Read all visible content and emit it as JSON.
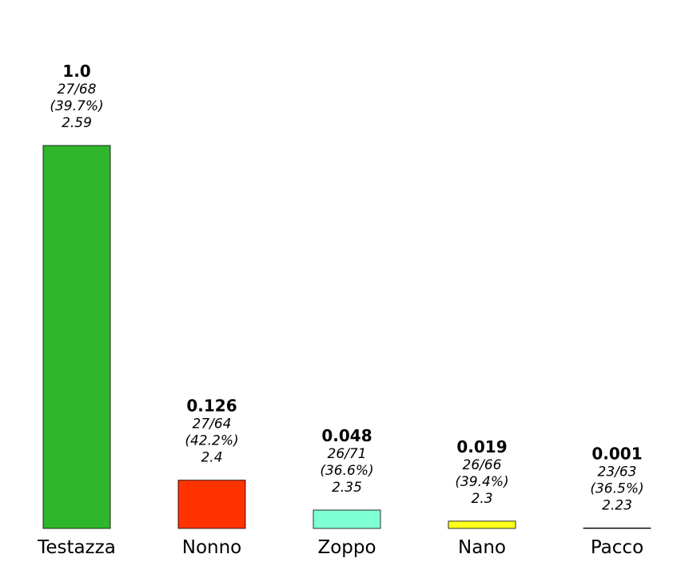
{
  "chart_data": {
    "type": "bar",
    "categories": [
      "Testazza",
      "Nonno",
      "Zoppo",
      "Nano",
      "Pacco"
    ],
    "values": [
      1.0,
      0.126,
      0.048,
      0.019,
      0.001
    ],
    "value_labels": [
      "1.0",
      "0.126",
      "0.048",
      "0.019",
      "0.001"
    ],
    "fractions": [
      "27/68",
      "27/64",
      "26/71",
      "26/66",
      "23/63"
    ],
    "percents": [
      "(39.7%)",
      "(42.2%)",
      "(36.6%)",
      "(39.4%)",
      "(36.5%)"
    ],
    "scores": [
      "2.59",
      "2.4",
      "2.35",
      "2.3",
      "2.23"
    ],
    "colors": [
      "#2fb72c",
      "#ff3300",
      "#7fffd4",
      "#ffff1a",
      "#1a1a6e"
    ],
    "title": "",
    "xlabel": "",
    "ylabel": "",
    "ylim": [
      0,
      1.0
    ],
    "grid": false,
    "legend": "none"
  }
}
